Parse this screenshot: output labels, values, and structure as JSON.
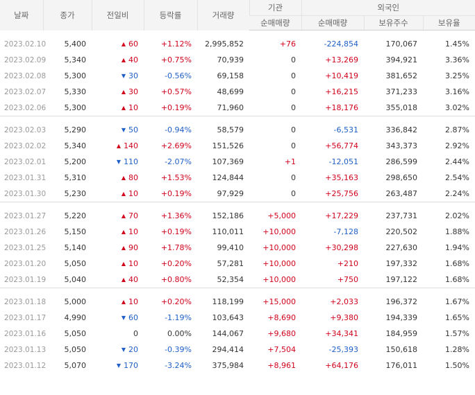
{
  "header": {
    "date": "날짜",
    "close": "종가",
    "change": "전일비",
    "rate": "등락률",
    "volume": "거래량",
    "institution": "기관",
    "foreign": "외국인",
    "inst_net": "순매매량",
    "foreign_net": "순매매량",
    "foreign_holdings": "보유주수",
    "foreign_ratio": "보유율"
  },
  "arrows": {
    "up": "▲",
    "down": "▼"
  },
  "colors": {
    "up": "#d0021b",
    "down": "#1f5fc6"
  },
  "groups": [
    {
      "rows": [
        {
          "date": "2023.02.10",
          "close": "5,400",
          "dir": "up",
          "diff": "60",
          "rate": "+1.12%",
          "volume": "2,995,852",
          "inst": "+76",
          "foreign": "-224,854",
          "holdings": "170,067",
          "ratio": "1.45%"
        },
        {
          "date": "2023.02.09",
          "close": "5,340",
          "dir": "up",
          "diff": "40",
          "rate": "+0.75%",
          "volume": "70,939",
          "inst": "0",
          "foreign": "+13,269",
          "holdings": "394,921",
          "ratio": "3.36%"
        },
        {
          "date": "2023.02.08",
          "close": "5,300",
          "dir": "down",
          "diff": "30",
          "rate": "-0.56%",
          "volume": "69,158",
          "inst": "0",
          "foreign": "+10,419",
          "holdings": "381,652",
          "ratio": "3.25%"
        },
        {
          "date": "2023.02.07",
          "close": "5,330",
          "dir": "up",
          "diff": "30",
          "rate": "+0.57%",
          "volume": "48,699",
          "inst": "0",
          "foreign": "+16,215",
          "holdings": "371,233",
          "ratio": "3.16%"
        },
        {
          "date": "2023.02.06",
          "close": "5,300",
          "dir": "up",
          "diff": "10",
          "rate": "+0.19%",
          "volume": "71,960",
          "inst": "0",
          "foreign": "+18,176",
          "holdings": "355,018",
          "ratio": "3.02%"
        }
      ]
    },
    {
      "rows": [
        {
          "date": "2023.02.03",
          "close": "5,290",
          "dir": "down",
          "diff": "50",
          "rate": "-0.94%",
          "volume": "58,579",
          "inst": "0",
          "foreign": "-6,531",
          "holdings": "336,842",
          "ratio": "2.87%"
        },
        {
          "date": "2023.02.02",
          "close": "5,340",
          "dir": "up",
          "diff": "140",
          "rate": "+2.69%",
          "volume": "151,526",
          "inst": "0",
          "foreign": "+56,774",
          "holdings": "343,373",
          "ratio": "2.92%"
        },
        {
          "date": "2023.02.01",
          "close": "5,200",
          "dir": "down",
          "diff": "110",
          "rate": "-2.07%",
          "volume": "107,369",
          "inst": "+1",
          "foreign": "-12,051",
          "holdings": "286,599",
          "ratio": "2.44%"
        },
        {
          "date": "2023.01.31",
          "close": "5,310",
          "dir": "up",
          "diff": "80",
          "rate": "+1.53%",
          "volume": "124,844",
          "inst": "0",
          "foreign": "+35,163",
          "holdings": "298,650",
          "ratio": "2.54%"
        },
        {
          "date": "2023.01.30",
          "close": "5,230",
          "dir": "up",
          "diff": "10",
          "rate": "+0.19%",
          "volume": "97,929",
          "inst": "0",
          "foreign": "+25,756",
          "holdings": "263,487",
          "ratio": "2.24%"
        }
      ]
    },
    {
      "rows": [
        {
          "date": "2023.01.27",
          "close": "5,220",
          "dir": "up",
          "diff": "70",
          "rate": "+1.36%",
          "volume": "152,186",
          "inst": "+5,000",
          "foreign": "+17,229",
          "holdings": "237,731",
          "ratio": "2.02%"
        },
        {
          "date": "2023.01.26",
          "close": "5,150",
          "dir": "up",
          "diff": "10",
          "rate": "+0.19%",
          "volume": "110,011",
          "inst": "+10,000",
          "foreign": "-7,128",
          "holdings": "220,502",
          "ratio": "1.88%"
        },
        {
          "date": "2023.01.25",
          "close": "5,140",
          "dir": "up",
          "diff": "90",
          "rate": "+1.78%",
          "volume": "99,410",
          "inst": "+10,000",
          "foreign": "+30,298",
          "holdings": "227,630",
          "ratio": "1.94%"
        },
        {
          "date": "2023.01.20",
          "close": "5,050",
          "dir": "up",
          "diff": "10",
          "rate": "+0.20%",
          "volume": "57,281",
          "inst": "+10,000",
          "foreign": "+210",
          "holdings": "197,332",
          "ratio": "1.68%"
        },
        {
          "date": "2023.01.19",
          "close": "5,040",
          "dir": "up",
          "diff": "40",
          "rate": "+0.80%",
          "volume": "52,354",
          "inst": "+10,000",
          "foreign": "+750",
          "holdings": "197,122",
          "ratio": "1.68%"
        }
      ]
    },
    {
      "rows": [
        {
          "date": "2023.01.18",
          "close": "5,000",
          "dir": "up",
          "diff": "10",
          "rate": "+0.20%",
          "volume": "118,199",
          "inst": "+15,000",
          "foreign": "+2,033",
          "holdings": "196,372",
          "ratio": "1.67%"
        },
        {
          "date": "2023.01.17",
          "close": "4,990",
          "dir": "down",
          "diff": "60",
          "rate": "-1.19%",
          "volume": "103,643",
          "inst": "+8,690",
          "foreign": "+9,380",
          "holdings": "194,339",
          "ratio": "1.65%"
        },
        {
          "date": "2023.01.16",
          "close": "5,050",
          "dir": "none",
          "diff": "0",
          "rate": "0.00%",
          "volume": "144,067",
          "inst": "+9,680",
          "foreign": "+34,341",
          "holdings": "184,959",
          "ratio": "1.57%"
        },
        {
          "date": "2023.01.13",
          "close": "5,050",
          "dir": "down",
          "diff": "20",
          "rate": "-0.39%",
          "volume": "294,414",
          "inst": "+7,504",
          "foreign": "-25,393",
          "holdings": "150,618",
          "ratio": "1.28%"
        },
        {
          "date": "2023.01.12",
          "close": "5,070",
          "dir": "down",
          "diff": "170",
          "rate": "-3.24%",
          "volume": "375,984",
          "inst": "+8,961",
          "foreign": "+64,176",
          "holdings": "176,011",
          "ratio": "1.50%"
        }
      ]
    }
  ]
}
